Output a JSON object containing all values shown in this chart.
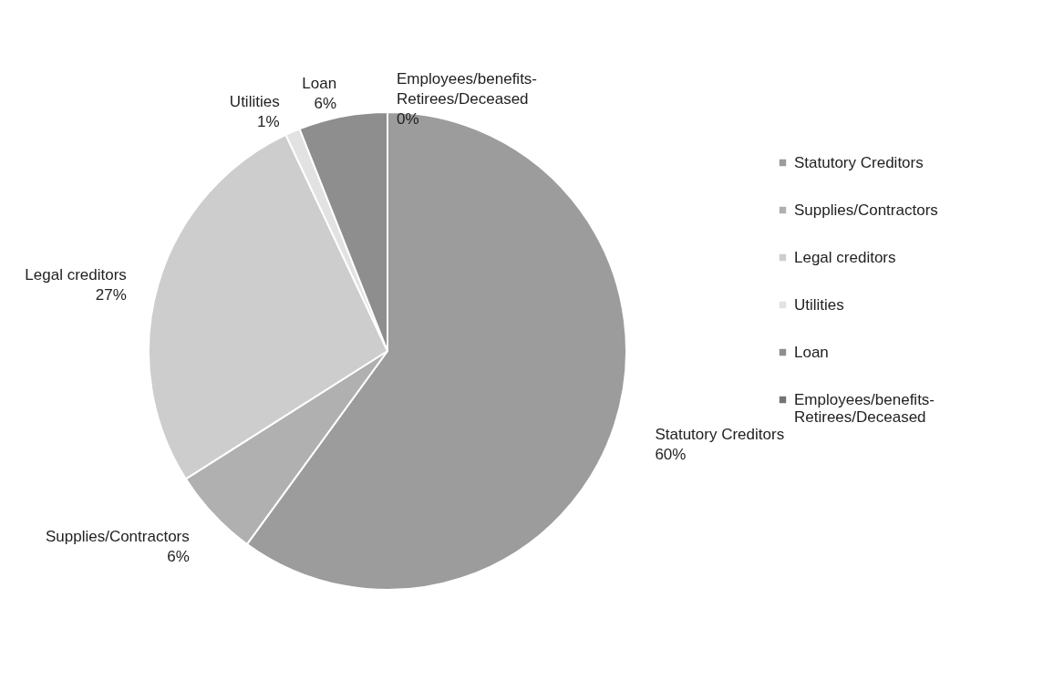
{
  "chart_data": {
    "type": "pie",
    "categories": [
      "Statutory Creditors",
      "Supplies/Contractors",
      "Legal creditors",
      "Utilities",
      "Loan",
      "Employees/benefits-Retirees/Deceased"
    ],
    "values": [
      60,
      6,
      27,
      1,
      6,
      0
    ],
    "value_labels": [
      "60%",
      "6%",
      "27%",
      "1%",
      "6%",
      "0%"
    ],
    "colors": [
      "#9c9c9c",
      "#b0b0b0",
      "#cdcdcd",
      "#e2e2e2",
      "#8e8e8e",
      "#747474"
    ],
    "legend": "right"
  }
}
